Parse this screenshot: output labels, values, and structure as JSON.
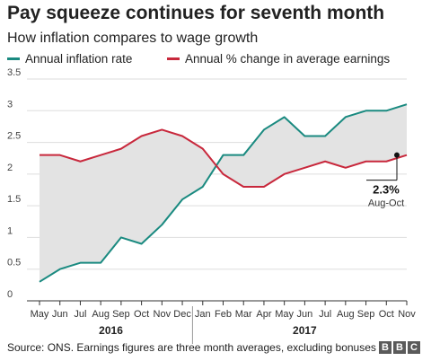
{
  "chart_data": {
    "type": "line",
    "title": "Pay squeeze continues for seventh month",
    "subtitle": "How inflation compares to wage growth",
    "categories": [
      "May",
      "Jun",
      "Jul",
      "Aug",
      "Sep",
      "Oct",
      "Nov",
      "Dec",
      "Jan",
      "Feb",
      "Mar",
      "Apr",
      "May",
      "Jun",
      "Jul",
      "Aug",
      "Sep",
      "Oct",
      "Nov"
    ],
    "years": [
      {
        "label": "2016",
        "from": "May",
        "to": "Dec"
      },
      {
        "label": "2017",
        "from": "Jan",
        "to": "Nov"
      }
    ],
    "series": [
      {
        "name": "Annual inflation rate",
        "color": "#1a8a80",
        "values": [
          0.3,
          0.5,
          0.6,
          0.6,
          1.0,
          0.9,
          1.2,
          1.6,
          1.8,
          2.3,
          2.3,
          2.7,
          2.9,
          2.6,
          2.6,
          2.9,
          3.0,
          3.0,
          3.1
        ]
      },
      {
        "name": "Annual % change in average earnings",
        "color": "#c8283c",
        "values": [
          2.3,
          2.3,
          2.2,
          2.3,
          2.4,
          2.6,
          2.7,
          2.6,
          2.4,
          2.0,
          1.8,
          1.8,
          2.0,
          2.1,
          2.2,
          2.1,
          2.2,
          2.2,
          2.3
        ]
      }
    ],
    "yticks": [
      "0",
      "0.5",
      "1",
      "1.5",
      "2",
      "2.5",
      "3",
      "3.5"
    ],
    "ylim": [
      0,
      3.5
    ],
    "grid": true,
    "shade_between_series": true,
    "annotation": {
      "value": "2.3%",
      "label": "Aug-Oct"
    }
  },
  "source": "Source: ONS. Earnings figures are three month averages, excluding bonuses",
  "logo": [
    "B",
    "B",
    "C"
  ]
}
